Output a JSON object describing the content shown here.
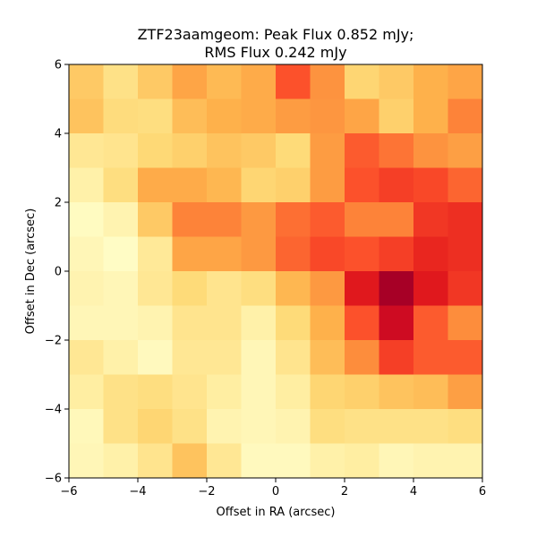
{
  "chart_data": {
    "type": "heatmap",
    "title_line1": "ZTF23aamgeom: Peak Flux 0.852 mJy;",
    "title_line2": "RMS Flux 0.242 mJy",
    "xlabel": "Offset in RA (arcsec)",
    "ylabel": "Offset in Dec (arcsec)",
    "xlim": [
      -6,
      6
    ],
    "ylim": [
      -6,
      6
    ],
    "x_ticks": [
      -6,
      -4,
      -2,
      0,
      2,
      4,
      6
    ],
    "y_ticks": [
      -6,
      -4,
      -2,
      0,
      2,
      4,
      6
    ],
    "x_tick_labels": [
      "−6",
      "−4",
      "−2",
      "0",
      "2",
      "4",
      "6"
    ],
    "y_tick_labels": [
      "−6",
      "−4",
      "−2",
      "0",
      "2",
      "4",
      "6"
    ],
    "colormap": "YlOrRd",
    "grid": false,
    "rows_top_to_bottom": [
      [
        0.3,
        0.2,
        0.3,
        0.42,
        0.35,
        0.4,
        0.62,
        0.48,
        0.26,
        0.3,
        0.38,
        0.42
      ],
      [
        0.32,
        0.23,
        0.22,
        0.34,
        0.38,
        0.4,
        0.45,
        0.47,
        0.42,
        0.28,
        0.38,
        0.52
      ],
      [
        0.16,
        0.18,
        0.25,
        0.28,
        0.32,
        0.3,
        0.24,
        0.45,
        0.6,
        0.55,
        0.48,
        0.44
      ],
      [
        0.1,
        0.22,
        0.4,
        0.4,
        0.36,
        0.26,
        0.28,
        0.45,
        0.62,
        0.66,
        0.64,
        0.58
      ],
      [
        0.03,
        0.08,
        0.3,
        0.52,
        0.52,
        0.46,
        0.56,
        0.6,
        0.52,
        0.52,
        0.68,
        0.7
      ],
      [
        0.06,
        0.02,
        0.15,
        0.42,
        0.42,
        0.46,
        0.58,
        0.64,
        0.62,
        0.66,
        0.72,
        0.7
      ],
      [
        0.08,
        0.06,
        0.16,
        0.24,
        0.18,
        0.22,
        0.36,
        0.46,
        0.76,
        0.92,
        0.76,
        0.68
      ],
      [
        0.06,
        0.06,
        0.08,
        0.18,
        0.18,
        0.1,
        0.24,
        0.38,
        0.62,
        0.82,
        0.6,
        0.5
      ],
      [
        0.16,
        0.1,
        0.04,
        0.16,
        0.16,
        0.06,
        0.18,
        0.34,
        0.5,
        0.66,
        0.6,
        0.6
      ],
      [
        0.12,
        0.2,
        0.22,
        0.18,
        0.12,
        0.06,
        0.12,
        0.26,
        0.28,
        0.32,
        0.34,
        0.44
      ],
      [
        0.05,
        0.2,
        0.26,
        0.2,
        0.08,
        0.06,
        0.08,
        0.22,
        0.2,
        0.2,
        0.2,
        0.22
      ],
      [
        0.06,
        0.1,
        0.18,
        0.32,
        0.16,
        0.04,
        0.04,
        0.1,
        0.12,
        0.06,
        0.08,
        0.08
      ]
    ]
  }
}
